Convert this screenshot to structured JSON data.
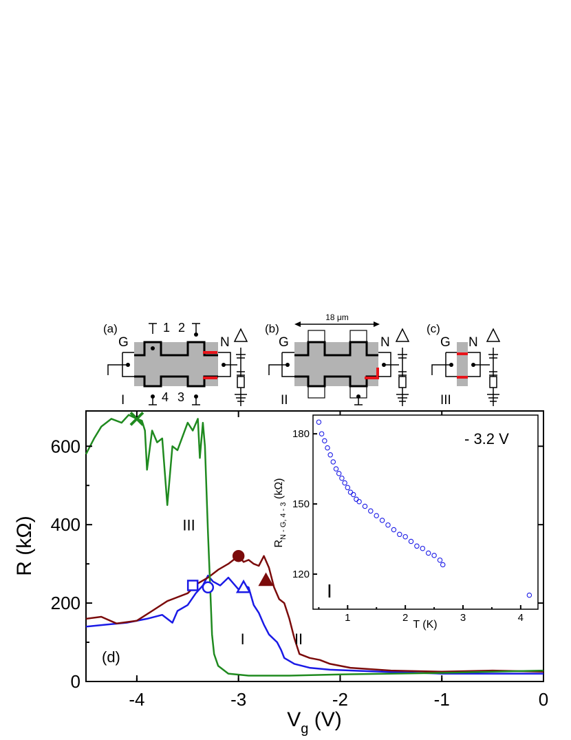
{
  "schematics": {
    "a": {
      "panel": "(a)",
      "g": "G",
      "n": "N",
      "roman": "I",
      "c1": "1",
      "c2": "2",
      "c3": "3",
      "c4": "4"
    },
    "b": {
      "panel": "(b)",
      "g": "G",
      "n": "N",
      "roman": "II",
      "dim": "18 μm"
    },
    "c": {
      "panel": "(c)",
      "g": "G",
      "n": "N",
      "roman": "III"
    }
  },
  "chart_data": [
    {
      "type": "line",
      "panel_label": "(d)",
      "xlabel": "V",
      "xlabel_sub": "g",
      "xlabel_unit": " (V)",
      "ylabel": "R (kΩ)",
      "xlim": [
        -4.5,
        0
      ],
      "ylim": [
        0,
        690
      ],
      "xticks": [
        -4,
        -3,
        -2,
        -1,
        0
      ],
      "xtick_labels": [
        "-4",
        "-3",
        "-2",
        "-1",
        "0"
      ],
      "yticks": [
        0,
        200,
        400,
        600
      ],
      "ytick_labels": [
        "0",
        "200",
        "400",
        "600"
      ],
      "curve_labels": [
        {
          "text": "III",
          "x": -3.55,
          "y": 385
        },
        {
          "text": "I",
          "x": -2.98,
          "y": 95
        },
        {
          "text": "II",
          "x": -2.45,
          "y": 95
        }
      ],
      "series": [
        {
          "color": "#1a1ae6",
          "points": [
            [
              -4.5,
              140
            ],
            [
              -4.3,
              145
            ],
            [
              -4.1,
              150
            ],
            [
              -3.9,
              160
            ],
            [
              -3.75,
              170
            ],
            [
              -3.65,
              150
            ],
            [
              -3.6,
              180
            ],
            [
              -3.5,
              195
            ],
            [
              -3.42,
              225
            ],
            [
              -3.35,
              245
            ],
            [
              -3.3,
              270
            ],
            [
              -3.25,
              255
            ],
            [
              -3.18,
              245
            ],
            [
              -3.1,
              265
            ],
            [
              -3.0,
              235
            ],
            [
              -2.95,
              245
            ],
            [
              -2.9,
              240
            ],
            [
              -2.85,
              195
            ],
            [
              -2.8,
              175
            ],
            [
              -2.75,
              145
            ],
            [
              -2.7,
              120
            ],
            [
              -2.62,
              100
            ],
            [
              -2.58,
              80
            ],
            [
              -2.55,
              60
            ],
            [
              -2.45,
              45
            ],
            [
              -2.3,
              35
            ],
            [
              -2.1,
              30
            ],
            [
              -1.8,
              27
            ],
            [
              -1.5,
              24
            ],
            [
              -1.0,
              20
            ],
            [
              -0.5,
              20
            ],
            [
              0,
              20
            ]
          ]
        },
        {
          "color": "#7b0b0b",
          "points": [
            [
              -4.5,
              160
            ],
            [
              -4.35,
              165
            ],
            [
              -4.2,
              148
            ],
            [
              -4.0,
              155
            ],
            [
              -3.85,
              180
            ],
            [
              -3.7,
              205
            ],
            [
              -3.5,
              225
            ],
            [
              -3.4,
              250
            ],
            [
              -3.3,
              265
            ],
            [
              -3.2,
              285
            ],
            [
              -3.1,
              300
            ],
            [
              -3.0,
              320
            ],
            [
              -2.95,
              305
            ],
            [
              -2.9,
              310
            ],
            [
              -2.85,
              300
            ],
            [
              -2.8,
              295
            ],
            [
              -2.75,
              320
            ],
            [
              -2.7,
              290
            ],
            [
              -2.65,
              240
            ],
            [
              -2.6,
              210
            ],
            [
              -2.55,
              200
            ],
            [
              -2.5,
              160
            ],
            [
              -2.45,
              110
            ],
            [
              -2.4,
              70
            ],
            [
              -2.3,
              60
            ],
            [
              -2.2,
              55
            ],
            [
              -2.1,
              45
            ],
            [
              -1.9,
              35
            ],
            [
              -1.5,
              28
            ],
            [
              -1.0,
              25
            ],
            [
              -0.5,
              28
            ],
            [
              0,
              25
            ]
          ]
        },
        {
          "color": "#1f8a1f",
          "points": [
            [
              -4.5,
              580
            ],
            [
              -4.42,
              620
            ],
            [
              -4.35,
              650
            ],
            [
              -4.25,
              670
            ],
            [
              -4.15,
              660
            ],
            [
              -4.08,
              680
            ],
            [
              -4.0,
              670
            ],
            [
              -3.95,
              665
            ],
            [
              -3.92,
              640
            ],
            [
              -3.9,
              540
            ],
            [
              -3.85,
              640
            ],
            [
              -3.8,
              610
            ],
            [
              -3.75,
              620
            ],
            [
              -3.7,
              450
            ],
            [
              -3.65,
              600
            ],
            [
              -3.6,
              590
            ],
            [
              -3.5,
              660
            ],
            [
              -3.45,
              640
            ],
            [
              -3.4,
              670
            ],
            [
              -3.38,
              570
            ],
            [
              -3.35,
              660
            ],
            [
              -3.33,
              600
            ],
            [
              -3.3,
              380
            ],
            [
              -3.28,
              250
            ],
            [
              -3.26,
              120
            ],
            [
              -3.24,
              70
            ],
            [
              -3.2,
              40
            ],
            [
              -3.1,
              20
            ],
            [
              -2.9,
              15
            ],
            [
              -2.5,
              15
            ],
            [
              -2.0,
              18
            ],
            [
              -1.5,
              20
            ],
            [
              -1.0,
              22
            ],
            [
              -0.5,
              25
            ],
            [
              0,
              28
            ]
          ]
        }
      ],
      "markers": [
        {
          "shape": "x",
          "color": "#1f8a1f",
          "x": -4.0,
          "y": 670
        },
        {
          "shape": "circle-filled",
          "color": "#7b0b0b",
          "x": -3.0,
          "y": 320
        },
        {
          "shape": "triangle-filled",
          "color": "#7b0b0b",
          "x": -2.73,
          "y": 258
        },
        {
          "shape": "square-open",
          "color": "#1a1ae6",
          "x": -3.45,
          "y": 245
        },
        {
          "shape": "circle-open",
          "color": "#1a1ae6",
          "x": -3.3,
          "y": 240
        },
        {
          "shape": "triangle-open",
          "color": "#1a1ae6",
          "x": -2.95,
          "y": 240
        }
      ]
    },
    {
      "type": "scatter",
      "annotation": "- 3.2 V",
      "curve_label": "I",
      "xlabel": "T (K)",
      "ylabel": "R",
      "ylabel_sub": "N - G, 4 - 3",
      "ylabel_unit": " (kΩ)",
      "xlim": [
        0.4,
        4.3
      ],
      "ylim": [
        105,
        188
      ],
      "xticks": [
        1,
        2,
        3,
        4
      ],
      "xtick_labels": [
        "1",
        "2",
        "3",
        "4"
      ],
      "yticks": [
        120,
        150,
        180
      ],
      "ytick_labels": [
        "120",
        "150",
        "180"
      ],
      "marker_color": "#1a1ae6",
      "points": [
        [
          0.5,
          185
        ],
        [
          0.55,
          180
        ],
        [
          0.6,
          177
        ],
        [
          0.65,
          174
        ],
        [
          0.7,
          171
        ],
        [
          0.75,
          168
        ],
        [
          0.8,
          165
        ],
        [
          0.85,
          163
        ],
        [
          0.9,
          161
        ],
        [
          0.95,
          159
        ],
        [
          1.0,
          157
        ],
        [
          1.05,
          155
        ],
        [
          1.1,
          154
        ],
        [
          1.15,
          152
        ],
        [
          1.2,
          151
        ],
        [
          1.3,
          149
        ],
        [
          1.4,
          147
        ],
        [
          1.5,
          145
        ],
        [
          1.6,
          143
        ],
        [
          1.7,
          141
        ],
        [
          1.8,
          139
        ],
        [
          1.9,
          137
        ],
        [
          2.0,
          136
        ],
        [
          2.1,
          134
        ],
        [
          2.2,
          132
        ],
        [
          2.3,
          131
        ],
        [
          2.4,
          129
        ],
        [
          2.5,
          128
        ],
        [
          2.6,
          126
        ],
        [
          2.65,
          124
        ],
        [
          4.15,
          111
        ]
      ]
    }
  ]
}
